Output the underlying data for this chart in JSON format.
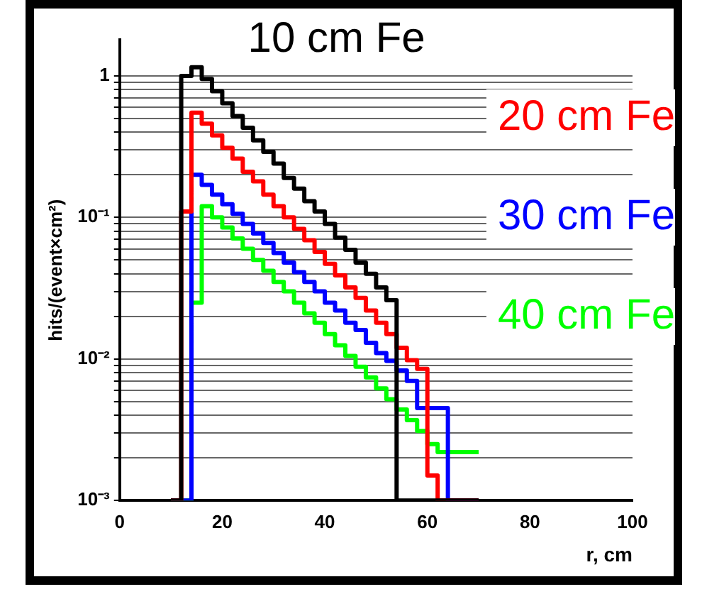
{
  "chart_data": {
    "type": "histogram",
    "xlabel": "r, cm",
    "ylabel": "hits/(event×cm²)",
    "bins": [
      10,
      12,
      14,
      16,
      18,
      20,
      22,
      24,
      26,
      28,
      30,
      32,
      34,
      36,
      38,
      40,
      42,
      44,
      46,
      48,
      50,
      52,
      54,
      56,
      58,
      60,
      62,
      64,
      66,
      68,
      70
    ],
    "series": [
      {
        "name": "10 cm Fe",
        "color": "#000000",
        "values": [
          0.001,
          1.0,
          1.15,
          0.95,
          0.78,
          0.64,
          0.52,
          0.43,
          0.35,
          0.29,
          0.24,
          0.19,
          0.16,
          0.13,
          0.11,
          0.09,
          0.072,
          0.059,
          0.048,
          0.04,
          0.032,
          0.026,
          0.001,
          0.001,
          0.001,
          0.001,
          0.001,
          0.001,
          0.001,
          0.001
        ]
      },
      {
        "name": "20 cm Fe",
        "color": "#ff0000",
        "values": [
          0.001,
          0.11,
          0.55,
          0.46,
          0.38,
          0.31,
          0.26,
          0.21,
          0.18,
          0.145,
          0.12,
          0.1,
          0.083,
          0.069,
          0.057,
          0.047,
          0.039,
          0.032,
          0.027,
          0.022,
          0.018,
          0.015,
          0.012,
          0.0098,
          0.0085,
          0.0015,
          0.001,
          0.001,
          0.001,
          0.001
        ]
      },
      {
        "name": "30 cm Fe",
        "color": "#0000ff",
        "values": [
          0.001,
          0.001,
          0.2,
          0.17,
          0.145,
          0.124,
          0.106,
          0.09,
          0.077,
          0.066,
          0.056,
          0.048,
          0.041,
          0.035,
          0.03,
          0.025,
          0.022,
          0.018,
          0.016,
          0.013,
          0.011,
          0.0097,
          0.0083,
          0.007,
          0.0045,
          0.0045,
          0.0045,
          0.001,
          0.001,
          0.001
        ]
      },
      {
        "name": "40 cm Fe",
        "color": "#00ff00",
        "values": [
          0.001,
          0.001,
          0.025,
          0.12,
          0.1,
          0.085,
          0.071,
          0.06,
          0.05,
          0.042,
          0.035,
          0.03,
          0.025,
          0.021,
          0.018,
          0.015,
          0.0125,
          0.0105,
          0.0088,
          0.0074,
          0.0062,
          0.0052,
          0.0044,
          0.0037,
          0.0031,
          0.0025,
          0.0022,
          0.0022,
          0.0022,
          0.0022
        ]
      }
    ],
    "log": "y",
    "xlim": [
      0,
      100
    ],
    "xticks": [
      0,
      20,
      40,
      60,
      80,
      100
    ],
    "ylim": [
      0.001,
      1.8
    ],
    "yticks": [
      {
        "value": 0.001,
        "label": "10⁻³"
      },
      {
        "value": 0.002,
        "label": null
      },
      {
        "value": 0.003,
        "label": null
      },
      {
        "value": 0.004,
        "label": null
      },
      {
        "value": 0.005,
        "label": null
      },
      {
        "value": 0.006,
        "label": null
      },
      {
        "value": 0.007,
        "label": null
      },
      {
        "value": 0.008,
        "label": null
      },
      {
        "value": 0.009,
        "label": null
      },
      {
        "value": 0.01,
        "label": "10⁻²"
      },
      {
        "value": 0.02,
        "label": null
      },
      {
        "value": 0.03,
        "label": null
      },
      {
        "value": 0.04,
        "label": null
      },
      {
        "value": 0.05,
        "label": null
      },
      {
        "value": 0.06,
        "label": null
      },
      {
        "value": 0.07,
        "label": null
      },
      {
        "value": 0.08,
        "label": null
      },
      {
        "value": 0.09,
        "label": null
      },
      {
        "value": 0.1,
        "label": "10⁻¹"
      },
      {
        "value": 0.2,
        "label": null
      },
      {
        "value": 0.3,
        "label": null
      },
      {
        "value": 0.4,
        "label": null
      },
      {
        "value": 0.5,
        "label": null
      },
      {
        "value": 0.6,
        "label": null
      },
      {
        "value": 0.7,
        "label": null
      },
      {
        "value": 0.8,
        "label": null
      },
      {
        "value": 0.9,
        "label": null
      },
      {
        "value": 1,
        "label": "1"
      }
    ],
    "grid": "y",
    "legend": "right",
    "line_style": "solid"
  }
}
